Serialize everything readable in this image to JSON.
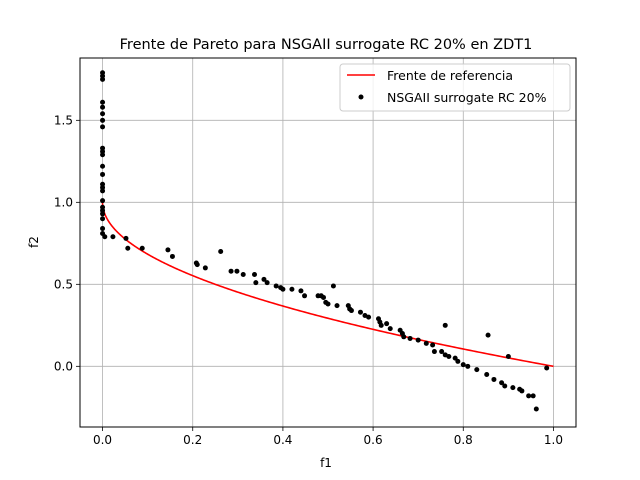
{
  "chart_data": {
    "type": "scatter",
    "title": "Frente de Pareto para NSGAII surrogate RC 20% en ZDT1",
    "xlabel": "f1",
    "ylabel": "f2",
    "xlim": [
      -0.05,
      1.05
    ],
    "ylim": [
      -0.37,
      1.88
    ],
    "xticks": [
      0.0,
      0.2,
      0.4,
      0.6,
      0.8,
      1.0
    ],
    "xtick_labels": [
      "0.0",
      "0.2",
      "0.4",
      "0.6",
      "0.8",
      "1.0"
    ],
    "yticks": [
      0.0,
      0.5,
      1.0,
      1.5
    ],
    "ytick_labels": [
      "0.0",
      "0.5",
      "1.0",
      "1.5"
    ],
    "grid": true,
    "legend_position": "top-right",
    "colors": {
      "reference": "#ff0000",
      "points": "#000000",
      "grid": "#b0b0b0"
    },
    "series": [
      {
        "name": "Frente de referencia",
        "kind": "line",
        "function": "1 - sqrt(f1)",
        "x_range": [
          0,
          1
        ]
      },
      {
        "name": "NSGAII surrogate RC 20%",
        "kind": "scatter",
        "points": [
          [
            0.0,
            1.79
          ],
          [
            0.0,
            1.77
          ],
          [
            0.0,
            1.75
          ],
          [
            0.0,
            1.61
          ],
          [
            0.0,
            1.58
          ],
          [
            0.0,
            1.54
          ],
          [
            0.0,
            1.5
          ],
          [
            0.0,
            1.46
          ],
          [
            0.0,
            1.33
          ],
          [
            0.0,
            1.31
          ],
          [
            0.0,
            1.29
          ],
          [
            0.0,
            1.22
          ],
          [
            0.0,
            1.17
          ],
          [
            0.0,
            1.11
          ],
          [
            0.0,
            1.09
          ],
          [
            0.0,
            1.07
          ],
          [
            0.0,
            1.01
          ],
          [
            0.0,
            0.97
          ],
          [
            0.0,
            0.95
          ],
          [
            0.0,
            0.93
          ],
          [
            0.0,
            0.9
          ],
          [
            0.0,
            0.84
          ],
          [
            0.0,
            0.81
          ],
          [
            0.005,
            0.79
          ],
          [
            0.023,
            0.79
          ],
          [
            0.052,
            0.78
          ],
          [
            0.056,
            0.72
          ],
          [
            0.088,
            0.72
          ],
          [
            0.145,
            0.71
          ],
          [
            0.155,
            0.67
          ],
          [
            0.208,
            0.63
          ],
          [
            0.21,
            0.62
          ],
          [
            0.228,
            0.6
          ],
          [
            0.262,
            0.7
          ],
          [
            0.285,
            0.58
          ],
          [
            0.298,
            0.58
          ],
          [
            0.312,
            0.56
          ],
          [
            0.337,
            0.56
          ],
          [
            0.34,
            0.51
          ],
          [
            0.358,
            0.53
          ],
          [
            0.365,
            0.51
          ],
          [
            0.385,
            0.49
          ],
          [
            0.395,
            0.48
          ],
          [
            0.4,
            0.47
          ],
          [
            0.42,
            0.47
          ],
          [
            0.44,
            0.46
          ],
          [
            0.448,
            0.43
          ],
          [
            0.478,
            0.43
          ],
          [
            0.485,
            0.43
          ],
          [
            0.49,
            0.42
          ],
          [
            0.495,
            0.39
          ],
          [
            0.5,
            0.38
          ],
          [
            0.512,
            0.49
          ],
          [
            0.52,
            0.37
          ],
          [
            0.545,
            0.37
          ],
          [
            0.548,
            0.35
          ],
          [
            0.552,
            0.34
          ],
          [
            0.572,
            0.33
          ],
          [
            0.582,
            0.31
          ],
          [
            0.59,
            0.3
          ],
          [
            0.612,
            0.29
          ],
          [
            0.615,
            0.27
          ],
          [
            0.618,
            0.25
          ],
          [
            0.63,
            0.26
          ],
          [
            0.638,
            0.23
          ],
          [
            0.66,
            0.22
          ],
          [
            0.665,
            0.2
          ],
          [
            0.668,
            0.18
          ],
          [
            0.682,
            0.17
          ],
          [
            0.7,
            0.16
          ],
          [
            0.718,
            0.14
          ],
          [
            0.732,
            0.13
          ],
          [
            0.736,
            0.09
          ],
          [
            0.752,
            0.09
          ],
          [
            0.76,
            0.25
          ],
          [
            0.76,
            0.07
          ],
          [
            0.768,
            0.06
          ],
          [
            0.782,
            0.05
          ],
          [
            0.788,
            0.03
          ],
          [
            0.8,
            0.01
          ],
          [
            0.81,
            0.0
          ],
          [
            0.83,
            -0.02
          ],
          [
            0.852,
            -0.05
          ],
          [
            0.855,
            0.19
          ],
          [
            0.868,
            -0.08
          ],
          [
            0.885,
            -0.1
          ],
          [
            0.892,
            -0.12
          ],
          [
            0.9,
            0.06
          ],
          [
            0.91,
            -0.13
          ],
          [
            0.925,
            -0.14
          ],
          [
            0.93,
            -0.15
          ],
          [
            0.945,
            -0.18
          ],
          [
            0.955,
            -0.18
          ],
          [
            0.962,
            -0.26
          ],
          [
            0.985,
            -0.01
          ]
        ]
      }
    ]
  }
}
